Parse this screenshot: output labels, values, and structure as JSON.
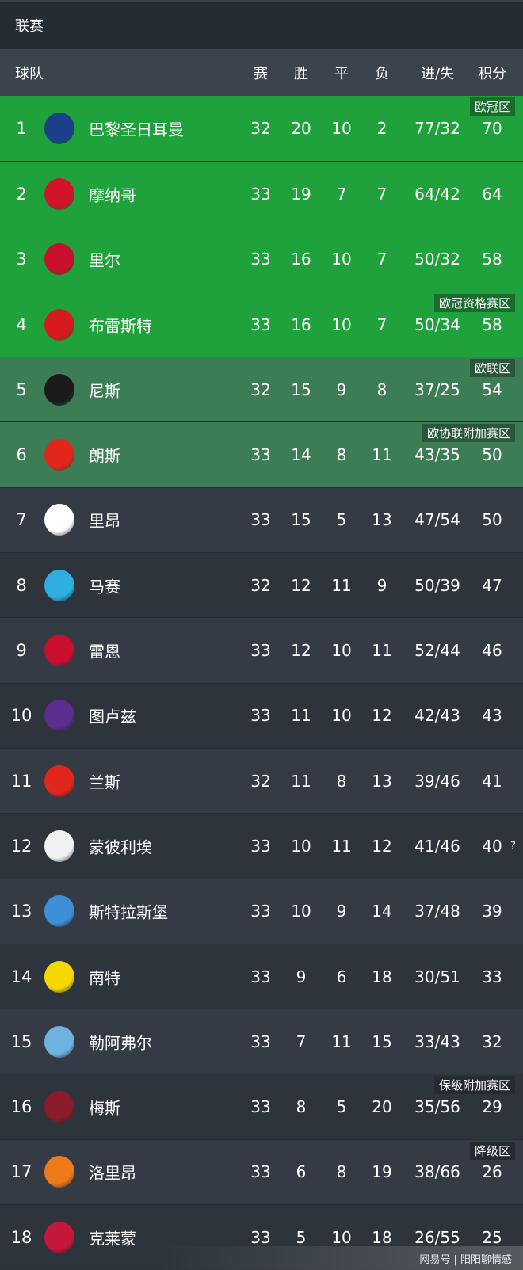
{
  "header": {
    "title": "联赛"
  },
  "columns": {
    "team": "球队",
    "played": "赛",
    "won": "胜",
    "drawn": "平",
    "lost": "负",
    "goals": "进/失",
    "points": "积分"
  },
  "colors": {
    "ucl_zone": "#1fa23b",
    "europe_zone": "#3d7d55",
    "row_dark": "#343b44",
    "row_darker": "#2d343c"
  },
  "rows": [
    {
      "rank": "1",
      "name": "巴黎圣日耳曼",
      "p": "32",
      "w": "20",
      "d": "10",
      "l": "2",
      "g": "77/32",
      "pts": "70",
      "zone": "欧冠区",
      "logo": "psg-logo",
      "lc": "#1c3f8a"
    },
    {
      "rank": "2",
      "name": "摩纳哥",
      "p": "33",
      "w": "19",
      "d": "7",
      "l": "7",
      "g": "64/42",
      "pts": "64",
      "zone": "",
      "logo": "monaco-logo",
      "lc": "#d0152b"
    },
    {
      "rank": "3",
      "name": "里尔",
      "p": "33",
      "w": "16",
      "d": "10",
      "l": "7",
      "g": "50/32",
      "pts": "58",
      "zone": "",
      "logo": "lille-logo",
      "lc": "#c8102e"
    },
    {
      "rank": "4",
      "name": "布雷斯特",
      "p": "33",
      "w": "16",
      "d": "10",
      "l": "7",
      "g": "50/34",
      "pts": "58",
      "zone": "欧冠资格赛区",
      "logo": "brest-logo",
      "lc": "#d71920"
    },
    {
      "rank": "5",
      "name": "尼斯",
      "p": "32",
      "w": "15",
      "d": "9",
      "l": "8",
      "g": "37/25",
      "pts": "54",
      "zone": "欧联区",
      "logo": "nice-logo",
      "lc": "#1a1a1a"
    },
    {
      "rank": "6",
      "name": "朗斯",
      "p": "33",
      "w": "14",
      "d": "8",
      "l": "11",
      "g": "43/35",
      "pts": "50",
      "zone": "欧协联附加赛区",
      "logo": "lens-logo",
      "lc": "#e1261c"
    },
    {
      "rank": "7",
      "name": "里昂",
      "p": "33",
      "w": "15",
      "d": "5",
      "l": "13",
      "g": "47/54",
      "pts": "50",
      "zone": "",
      "logo": "lyon-logo",
      "lc": "#ffffff"
    },
    {
      "rank": "8",
      "name": "马赛",
      "p": "32",
      "w": "12",
      "d": "11",
      "l": "9",
      "g": "50/39",
      "pts": "47",
      "zone": "",
      "logo": "marseille-logo",
      "lc": "#2faee0"
    },
    {
      "rank": "9",
      "name": "雷恩",
      "p": "33",
      "w": "12",
      "d": "10",
      "l": "11",
      "g": "52/44",
      "pts": "46",
      "zone": "",
      "logo": "rennes-logo",
      "lc": "#c8102e"
    },
    {
      "rank": "10",
      "name": "图卢兹",
      "p": "33",
      "w": "11",
      "d": "10",
      "l": "12",
      "g": "42/43",
      "pts": "43",
      "zone": "",
      "logo": "toulouse-logo",
      "lc": "#5b2d8e"
    },
    {
      "rank": "11",
      "name": "兰斯",
      "p": "32",
      "w": "11",
      "d": "8",
      "l": "13",
      "g": "39/46",
      "pts": "41",
      "zone": "",
      "logo": "reims-logo",
      "lc": "#e1261c"
    },
    {
      "rank": "12",
      "name": "蒙彼利埃",
      "p": "33",
      "w": "10",
      "d": "11",
      "l": "12",
      "g": "41/46",
      "pts": "40",
      "zone": "",
      "logo": "montpellier-logo",
      "lc": "#f2f2f2",
      "note": "?"
    },
    {
      "rank": "13",
      "name": "斯特拉斯堡",
      "p": "33",
      "w": "10",
      "d": "9",
      "l": "14",
      "g": "37/48",
      "pts": "39",
      "zone": "",
      "logo": "strasbourg-logo",
      "lc": "#3d8fd6"
    },
    {
      "rank": "14",
      "name": "南特",
      "p": "33",
      "w": "9",
      "d": "6",
      "l": "18",
      "g": "30/51",
      "pts": "33",
      "zone": "",
      "logo": "nantes-logo",
      "lc": "#f5d800"
    },
    {
      "rank": "15",
      "name": "勒阿弗尔",
      "p": "33",
      "w": "7",
      "d": "11",
      "l": "15",
      "g": "33/43",
      "pts": "32",
      "zone": "",
      "logo": "lehavre-logo",
      "lc": "#6fb3e0"
    },
    {
      "rank": "16",
      "name": "梅斯",
      "p": "33",
      "w": "8",
      "d": "5",
      "l": "20",
      "g": "35/56",
      "pts": "29",
      "zone": "保级附加赛区",
      "logo": "metz-logo",
      "lc": "#8a1c2b"
    },
    {
      "rank": "17",
      "name": "洛里昂",
      "p": "33",
      "w": "6",
      "d": "8",
      "l": "19",
      "g": "38/66",
      "pts": "26",
      "zone": "降级区",
      "logo": "lorient-logo",
      "lc": "#f07a1a"
    },
    {
      "rank": "18",
      "name": "克莱蒙",
      "p": "33",
      "w": "5",
      "d": "10",
      "l": "18",
      "g": "26/55",
      "pts": "25",
      "zone": "",
      "logo": "clermont-logo",
      "lc": "#c4173b"
    }
  ],
  "footer": {
    "text": "网易号 | 阳阳聊情感"
  }
}
